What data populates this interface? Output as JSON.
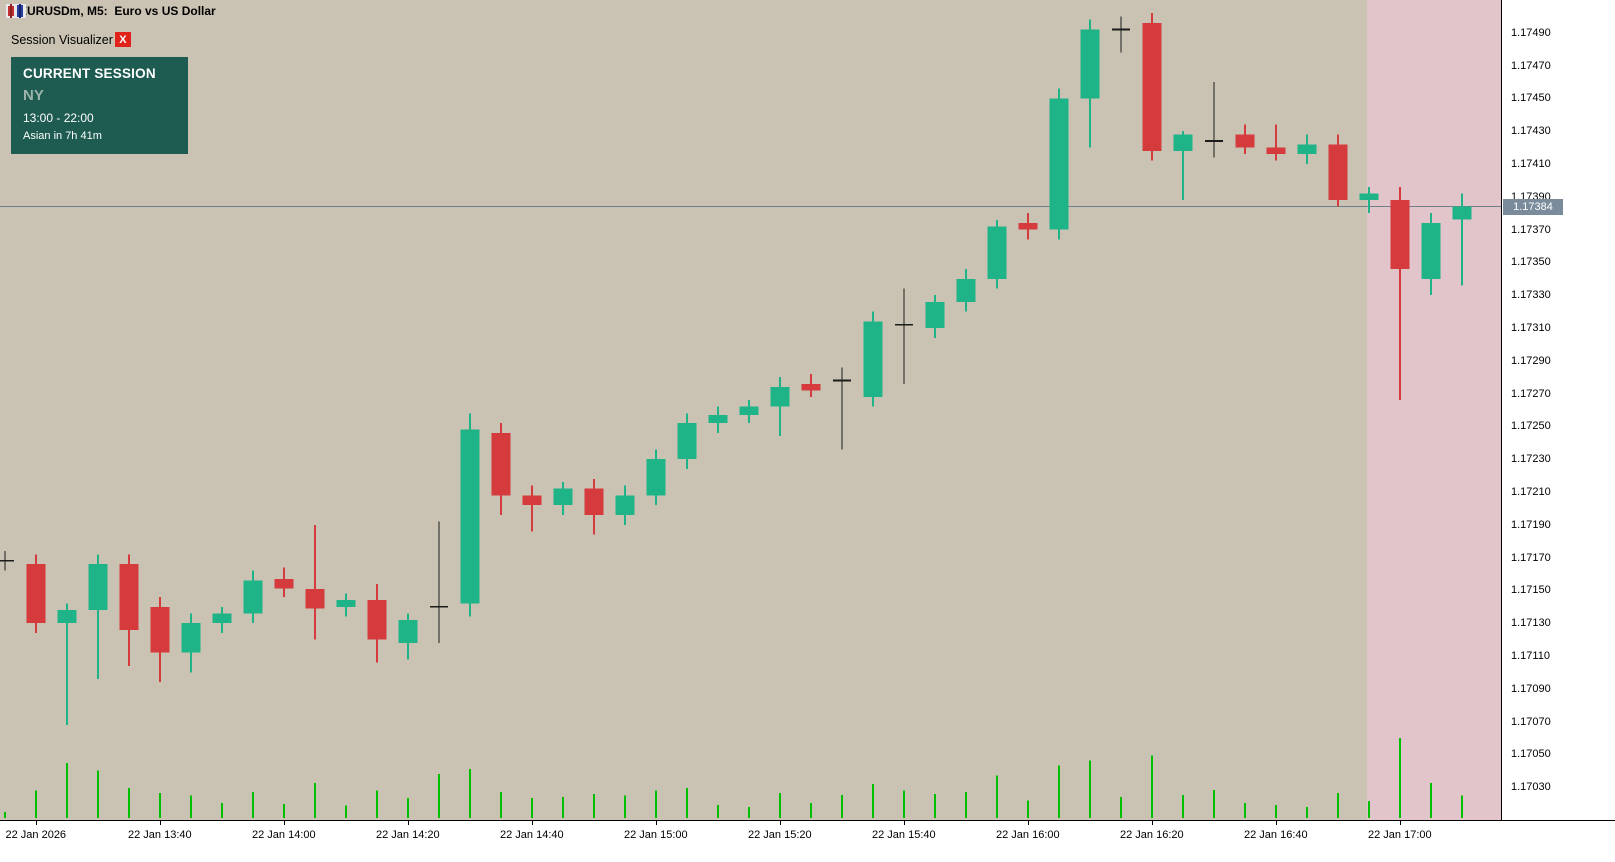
{
  "window": {
    "title": "EURUSDm, M5:  Euro vs US Dollar"
  },
  "indicator": {
    "name": "Session Visualizer",
    "close_label": "X",
    "panel": {
      "heading": "CURRENT SESSION",
      "session": "NY",
      "hours": "13:00 - 22:00",
      "next": "Asian in 7h 41m",
      "bg": "#1e5b50"
    }
  },
  "chart_data": {
    "type": "candlestick",
    "symbol": "EURUSDm",
    "timeframe": "M5",
    "title": "EURUSDm, M5:  Euro vs US Dollar",
    "current_price": "1.17384",
    "price_axis": {
      "top": 1.1751,
      "bottom": 1.1701,
      "tick_step": 0.0002,
      "labels": [
        "1.17490",
        "1.17470",
        "1.17450",
        "1.17430",
        "1.17410",
        "1.17390",
        "1.17370",
        "1.17350",
        "1.17330",
        "1.17310",
        "1.17290",
        "1.17270",
        "1.17250",
        "1.17230",
        "1.17210",
        "1.17190",
        "1.17170",
        "1.17150",
        "1.17130",
        "1.17110",
        "1.17090",
        "1.17070",
        "1.17050",
        "1.17030"
      ]
    },
    "time_labels": [
      {
        "text": "22 Jan 2026",
        "index": 1
      },
      {
        "text": "22 Jan 13:40",
        "index": 5
      },
      {
        "text": "22 Jan 14:00",
        "index": 9
      },
      {
        "text": "22 Jan 14:20",
        "index": 13
      },
      {
        "text": "22 Jan 14:40",
        "index": 17
      },
      {
        "text": "22 Jan 15:00",
        "index": 21
      },
      {
        "text": "22 Jan 15:20",
        "index": 25
      },
      {
        "text": "22 Jan 15:40",
        "index": 29
      },
      {
        "text": "22 Jan 16:00",
        "index": 33
      },
      {
        "text": "22 Jan 16:20",
        "index": 37
      },
      {
        "text": "22 Jan 16:40",
        "index": 41
      },
      {
        "text": "22 Jan 17:00",
        "index": 45
      }
    ],
    "session_band": {
      "start_index": 44,
      "label": "upcoming-session-shade"
    },
    "candles": [
      {
        "t": "13:15",
        "o": 1.17168,
        "h": 1.17174,
        "l": 1.17162,
        "c": 1.17168
      },
      {
        "t": "13:20",
        "o": 1.17166,
        "h": 1.17172,
        "l": 1.17124,
        "c": 1.1713
      },
      {
        "t": "13:25",
        "o": 1.1713,
        "h": 1.17142,
        "l": 1.17068,
        "c": 1.17138
      },
      {
        "t": "13:30",
        "o": 1.17138,
        "h": 1.17172,
        "l": 1.17096,
        "c": 1.17166
      },
      {
        "t": "13:35",
        "o": 1.17166,
        "h": 1.17172,
        "l": 1.17104,
        "c": 1.17126
      },
      {
        "t": "13:40",
        "o": 1.1714,
        "h": 1.17146,
        "l": 1.17094,
        "c": 1.17112
      },
      {
        "t": "13:45",
        "o": 1.17112,
        "h": 1.17136,
        "l": 1.171,
        "c": 1.1713
      },
      {
        "t": "13:50",
        "o": 1.1713,
        "h": 1.1714,
        "l": 1.17124,
        "c": 1.17136
      },
      {
        "t": "13:55",
        "o": 1.17136,
        "h": 1.17162,
        "l": 1.1713,
        "c": 1.17156
      },
      {
        "t": "14:00",
        "o": 1.17157,
        "h": 1.17164,
        "l": 1.17146,
        "c": 1.17151
      },
      {
        "t": "14:05",
        "o": 1.17151,
        "h": 1.1719,
        "l": 1.1712,
        "c": 1.17139
      },
      {
        "t": "14:10",
        "o": 1.1714,
        "h": 1.17148,
        "l": 1.17134,
        "c": 1.17144
      },
      {
        "t": "14:15",
        "o": 1.17144,
        "h": 1.17154,
        "l": 1.17106,
        "c": 1.1712
      },
      {
        "t": "14:20",
        "o": 1.17118,
        "h": 1.17136,
        "l": 1.17108,
        "c": 1.17132
      },
      {
        "t": "14:25",
        "o": 1.1714,
        "h": 1.17192,
        "l": 1.17118,
        "c": 1.1714
      },
      {
        "t": "14:30",
        "o": 1.17142,
        "h": 1.17258,
        "l": 1.17134,
        "c": 1.17248
      },
      {
        "t": "14:35",
        "o": 1.17246,
        "h": 1.17252,
        "l": 1.17196,
        "c": 1.17208
      },
      {
        "t": "14:40",
        "o": 1.17208,
        "h": 1.17214,
        "l": 1.17186,
        "c": 1.17202
      },
      {
        "t": "14:45",
        "o": 1.17202,
        "h": 1.17216,
        "l": 1.17196,
        "c": 1.17212
      },
      {
        "t": "14:50",
        "o": 1.17212,
        "h": 1.17218,
        "l": 1.17184,
        "c": 1.17196
      },
      {
        "t": "14:55",
        "o": 1.17196,
        "h": 1.17214,
        "l": 1.1719,
        "c": 1.17208
      },
      {
        "t": "15:00",
        "o": 1.17208,
        "h": 1.17236,
        "l": 1.17202,
        "c": 1.1723
      },
      {
        "t": "15:05",
        "o": 1.1723,
        "h": 1.17258,
        "l": 1.17224,
        "c": 1.17252
      },
      {
        "t": "15:10",
        "o": 1.17252,
        "h": 1.17262,
        "l": 1.17246,
        "c": 1.17257
      },
      {
        "t": "15:15",
        "o": 1.17257,
        "h": 1.17266,
        "l": 1.17252,
        "c": 1.17262
      },
      {
        "t": "15:20",
        "o": 1.17262,
        "h": 1.1728,
        "l": 1.17244,
        "c": 1.17274
      },
      {
        "t": "15:25",
        "o": 1.17276,
        "h": 1.17282,
        "l": 1.17268,
        "c": 1.17272
      },
      {
        "t": "15:30",
        "o": 1.17278,
        "h": 1.17286,
        "l": 1.17236,
        "c": 1.17278
      },
      {
        "t": "15:35",
        "o": 1.17268,
        "h": 1.1732,
        "l": 1.17262,
        "c": 1.17314
      },
      {
        "t": "15:40",
        "o": 1.17312,
        "h": 1.17334,
        "l": 1.17276,
        "c": 1.17312
      },
      {
        "t": "15:45",
        "o": 1.1731,
        "h": 1.1733,
        "l": 1.17304,
        "c": 1.17326
      },
      {
        "t": "15:50",
        "o": 1.17326,
        "h": 1.17346,
        "l": 1.1732,
        "c": 1.1734
      },
      {
        "t": "15:55",
        "o": 1.1734,
        "h": 1.17376,
        "l": 1.17334,
        "c": 1.17372
      },
      {
        "t": "16:00",
        "o": 1.17374,
        "h": 1.1738,
        "l": 1.17364,
        "c": 1.1737
      },
      {
        "t": "16:05",
        "o": 1.1737,
        "h": 1.17456,
        "l": 1.17364,
        "c": 1.1745
      },
      {
        "t": "16:10",
        "o": 1.1745,
        "h": 1.17498,
        "l": 1.1742,
        "c": 1.17492
      },
      {
        "t": "16:15",
        "o": 1.17492,
        "h": 1.175,
        "l": 1.17478,
        "c": 1.17492
      },
      {
        "t": "16:20",
        "o": 1.17496,
        "h": 1.17502,
        "l": 1.17412,
        "c": 1.17418
      },
      {
        "t": "16:25",
        "o": 1.17418,
        "h": 1.1743,
        "l": 1.17388,
        "c": 1.17428
      },
      {
        "t": "16:30",
        "o": 1.17424,
        "h": 1.1746,
        "l": 1.17414,
        "c": 1.17424
      },
      {
        "t": "16:35",
        "o": 1.17428,
        "h": 1.17434,
        "l": 1.17416,
        "c": 1.1742
      },
      {
        "t": "16:40",
        "o": 1.1742,
        "h": 1.17434,
        "l": 1.17412,
        "c": 1.17416
      },
      {
        "t": "16:45",
        "o": 1.17416,
        "h": 1.17428,
        "l": 1.1741,
        "c": 1.17422
      },
      {
        "t": "16:50",
        "o": 1.17422,
        "h": 1.17428,
        "l": 1.17384,
        "c": 1.17388
      },
      {
        "t": "16:55",
        "o": 1.17388,
        "h": 1.17396,
        "l": 1.1738,
        "c": 1.17392
      },
      {
        "t": "17:00",
        "o": 1.17388,
        "h": 1.17396,
        "l": 1.17266,
        "c": 1.17346
      },
      {
        "t": "17:05",
        "o": 1.1734,
        "h": 1.1738,
        "l": 1.1733,
        "c": 1.17374
      },
      {
        "t": "17:10",
        "o": 1.17376,
        "h": 1.17392,
        "l": 1.17336,
        "c": 1.17384
      }
    ],
    "volumes": [
      12,
      55,
      110,
      95,
      60,
      50,
      45,
      30,
      52,
      28,
      70,
      25,
      55,
      40,
      88,
      98,
      52,
      40,
      42,
      48,
      45,
      55,
      60,
      26,
      22,
      50,
      30,
      46,
      68,
      55,
      48,
      52,
      85,
      35,
      105,
      115,
      42,
      125,
      46,
      56,
      30,
      26,
      22,
      50,
      34,
      160,
      70,
      45
    ],
    "colors": {
      "background": "#cac3b3",
      "bull": "#1fb487",
      "bear": "#d53a3c",
      "doji": "#1c1c1c",
      "volume": "#00c000",
      "band": "#e2c5cb",
      "price_line": "#6e7e8a",
      "badge": "#7a8c9c"
    }
  }
}
